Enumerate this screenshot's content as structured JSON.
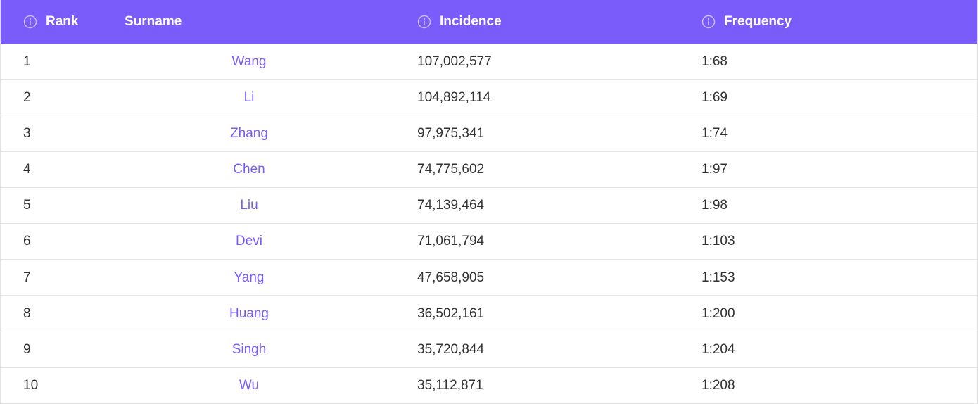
{
  "header": {
    "rank_label": "Rank",
    "surname_label": "Surname",
    "incidence_label": "Incidence",
    "frequency_label": "Frequency"
  },
  "colors": {
    "header_bg": "#7a5cfa",
    "link": "#7a5cfa",
    "text": "#333333"
  },
  "rows": [
    {
      "rank": "1",
      "surname": "Wang",
      "incidence": "107,002,577",
      "frequency": "1:68"
    },
    {
      "rank": "2",
      "surname": "Li",
      "incidence": "104,892,114",
      "frequency": "1:69"
    },
    {
      "rank": "3",
      "surname": "Zhang",
      "incidence": "97,975,341",
      "frequency": "1:74"
    },
    {
      "rank": "4",
      "surname": "Chen",
      "incidence": "74,775,602",
      "frequency": "1:97"
    },
    {
      "rank": "5",
      "surname": "Liu",
      "incidence": "74,139,464",
      "frequency": "1:98"
    },
    {
      "rank": "6",
      "surname": "Devi",
      "incidence": "71,061,794",
      "frequency": "1:103"
    },
    {
      "rank": "7",
      "surname": "Yang",
      "incidence": "47,658,905",
      "frequency": "1:153"
    },
    {
      "rank": "8",
      "surname": "Huang",
      "incidence": "36,502,161",
      "frequency": "1:200"
    },
    {
      "rank": "9",
      "surname": "Singh",
      "incidence": "35,720,844",
      "frequency": "1:204"
    },
    {
      "rank": "10",
      "surname": "Wu",
      "incidence": "35,112,871",
      "frequency": "1:208"
    }
  ]
}
